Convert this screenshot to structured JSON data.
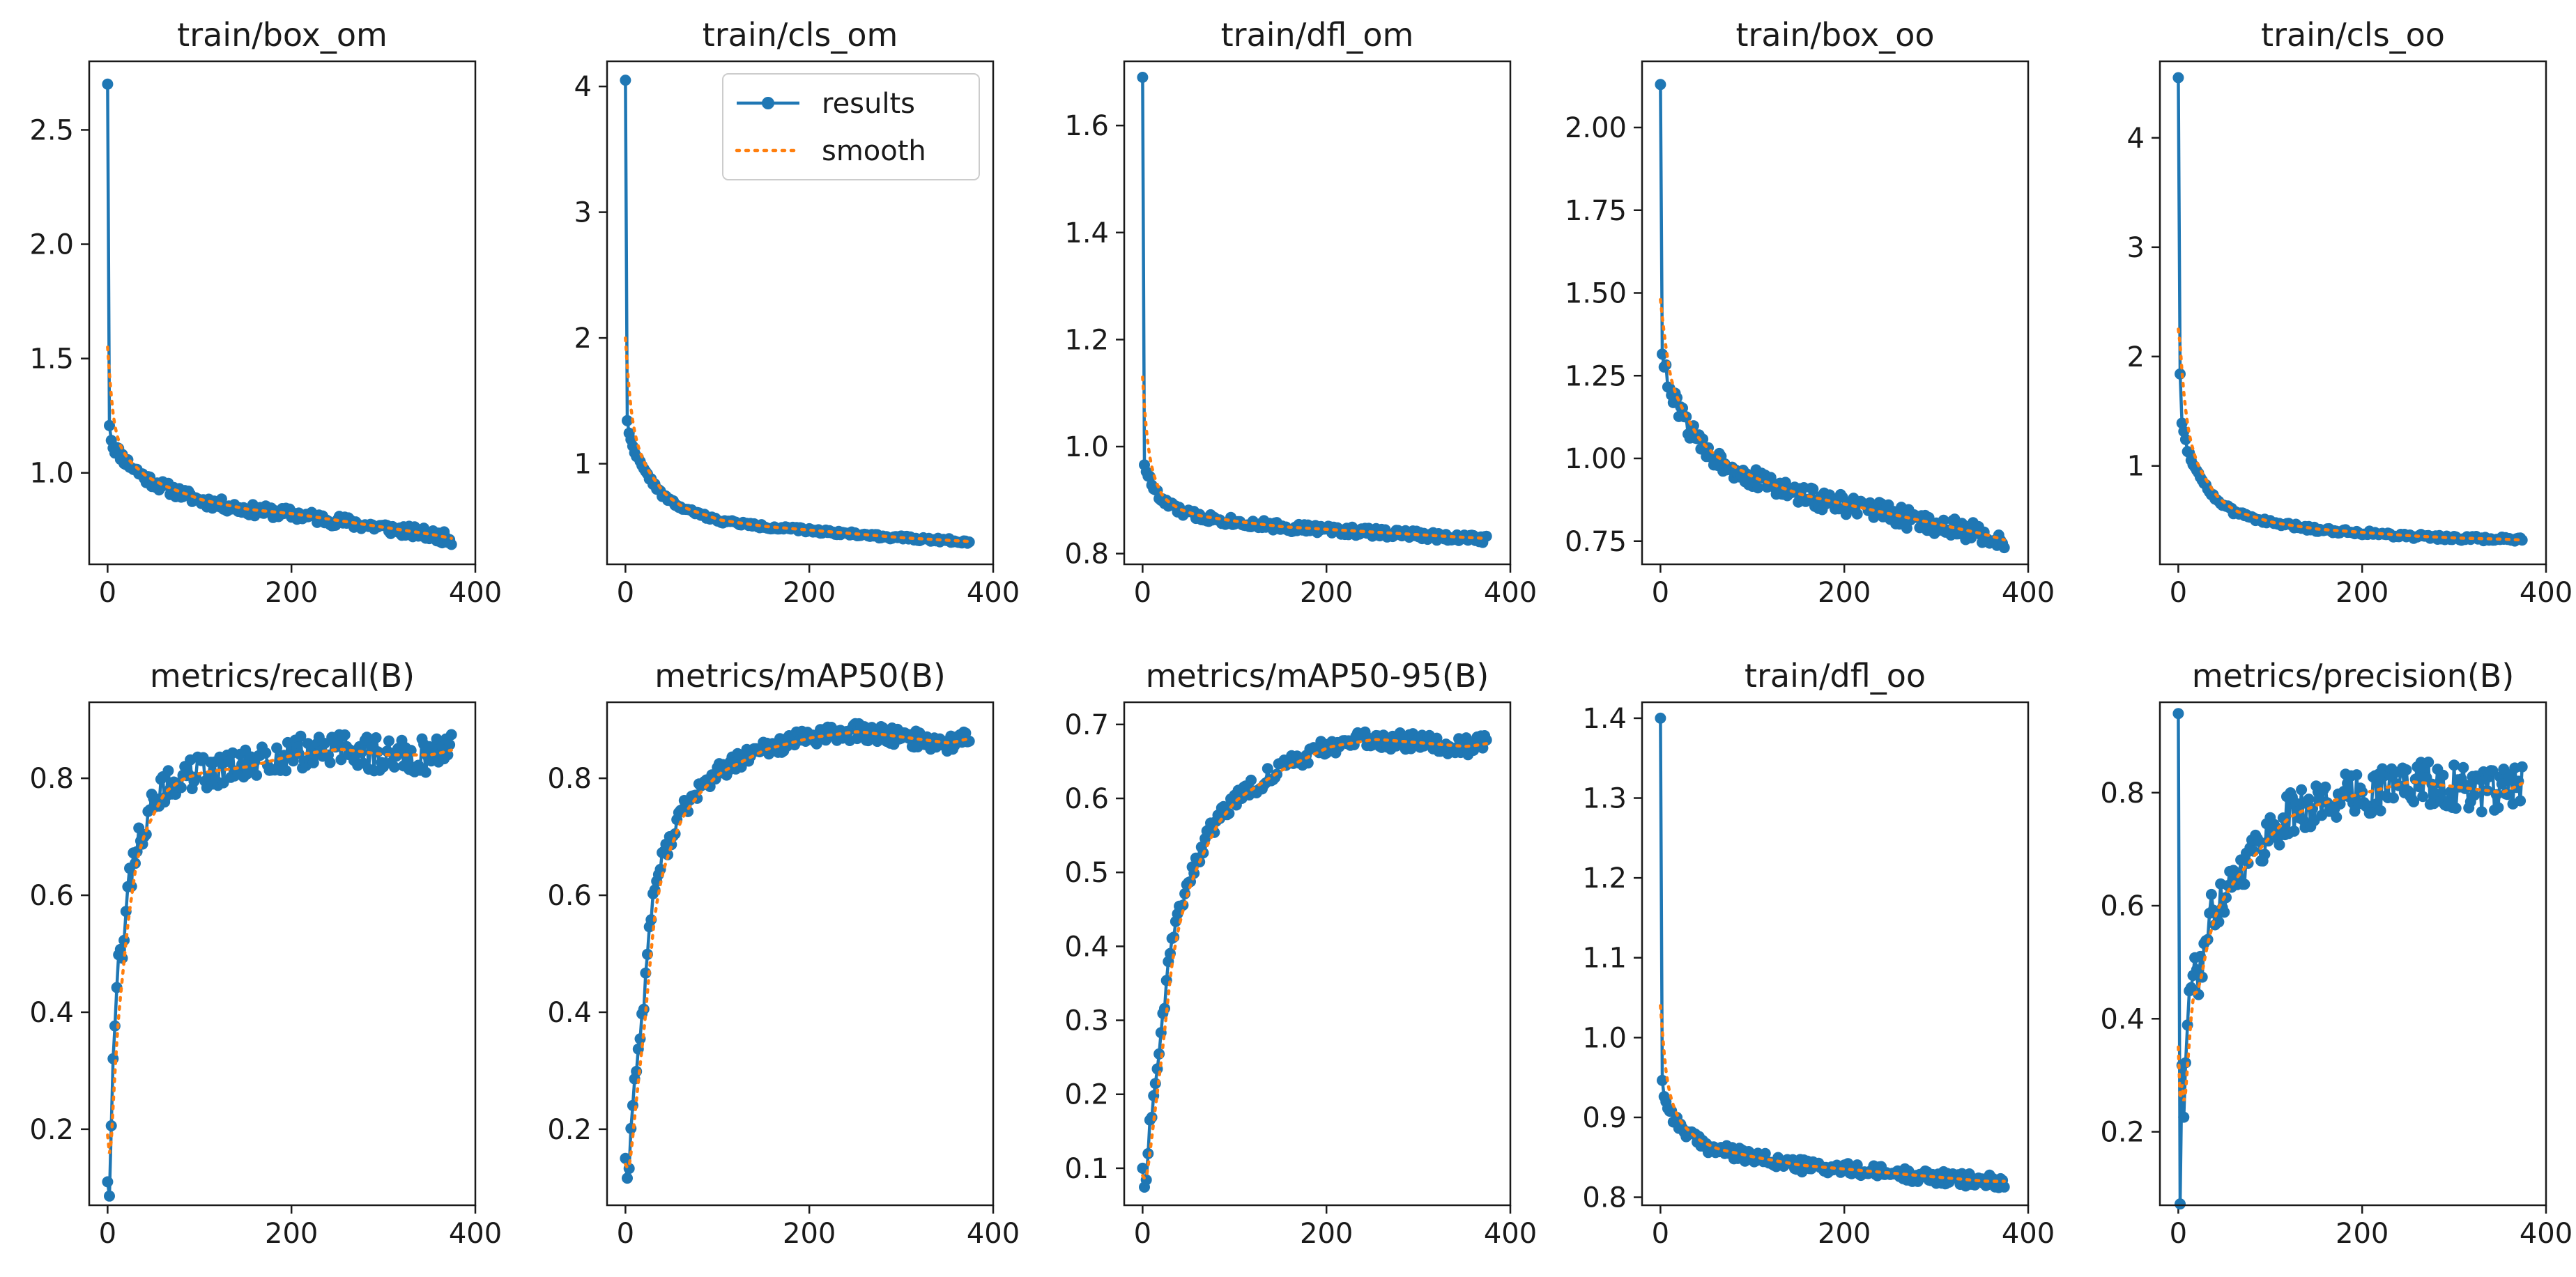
{
  "legend": {
    "results_label": "results",
    "smooth_label": "smooth"
  },
  "colors": {
    "results": "#1f77b4",
    "smooth": "#ff7f0e",
    "axis": "#1a1a1a"
  },
  "chart_data": [
    {
      "type": "line",
      "title": "train/box_om",
      "xlim": [
        -20,
        400
      ],
      "ylim": [
        0.6,
        2.8
      ],
      "xticks": [
        0,
        200,
        400
      ],
      "xtick_labels": [
        "0",
        "200",
        "400"
      ],
      "yticks": [
        1.0,
        1.5,
        2.0,
        2.5
      ],
      "ytick_labels": [
        "1.0",
        "1.5",
        "2.0",
        "2.5"
      ],
      "keypoints": [
        [
          0,
          2.7
        ],
        [
          2,
          1.22
        ],
        [
          5,
          1.12
        ],
        [
          10,
          1.1
        ],
        [
          20,
          1.05
        ],
        [
          40,
          0.98
        ],
        [
          60,
          0.94
        ],
        [
          100,
          0.88
        ],
        [
          150,
          0.84
        ],
        [
          200,
          0.82
        ],
        [
          250,
          0.79
        ],
        [
          300,
          0.76
        ],
        [
          350,
          0.73
        ],
        [
          375,
          0.71
        ]
      ],
      "smooth_start": 1.55,
      "noise": 0.025,
      "seed": 11
    },
    {
      "type": "line",
      "title": "train/cls_om",
      "xlim": [
        -20,
        400
      ],
      "ylim": [
        0.2,
        4.2
      ],
      "xticks": [
        0,
        200,
        400
      ],
      "xtick_labels": [
        "0",
        "200",
        "400"
      ],
      "yticks": [
        1,
        2,
        3,
        4
      ],
      "ytick_labels": [
        "1",
        "2",
        "3",
        "4"
      ],
      "keypoints": [
        [
          0,
          4.05
        ],
        [
          2,
          1.35
        ],
        [
          5,
          1.2
        ],
        [
          10,
          1.1
        ],
        [
          20,
          0.95
        ],
        [
          40,
          0.75
        ],
        [
          60,
          0.65
        ],
        [
          100,
          0.55
        ],
        [
          150,
          0.5
        ],
        [
          200,
          0.47
        ],
        [
          250,
          0.44
        ],
        [
          300,
          0.41
        ],
        [
          350,
          0.39
        ],
        [
          375,
          0.38
        ]
      ],
      "smooth_start": 2.0,
      "noise": 0.015,
      "seed": 22
    },
    {
      "type": "line",
      "title": "train/dfl_om",
      "xlim": [
        -20,
        400
      ],
      "ylim": [
        0.78,
        1.72
      ],
      "xticks": [
        0,
        200,
        400
      ],
      "xtick_labels": [
        "0",
        "200",
        "400"
      ],
      "yticks": [
        0.8,
        1.0,
        1.2,
        1.4,
        1.6
      ],
      "ytick_labels": [
        "0.8",
        "1.0",
        "1.2",
        "1.4",
        "1.6"
      ],
      "keypoints": [
        [
          0,
          1.69
        ],
        [
          2,
          0.97
        ],
        [
          5,
          0.95
        ],
        [
          10,
          0.93
        ],
        [
          20,
          0.9
        ],
        [
          40,
          0.88
        ],
        [
          60,
          0.87
        ],
        [
          100,
          0.86
        ],
        [
          150,
          0.85
        ],
        [
          200,
          0.845
        ],
        [
          250,
          0.84
        ],
        [
          300,
          0.835
        ],
        [
          350,
          0.83
        ],
        [
          375,
          0.828
        ]
      ],
      "smooth_start": 1.13,
      "noise": 0.008,
      "seed": 33
    },
    {
      "type": "line",
      "title": "train/box_oo",
      "xlim": [
        -20,
        400
      ],
      "ylim": [
        0.68,
        2.2
      ],
      "xticks": [
        0,
        200,
        400
      ],
      "xtick_labels": [
        "0",
        "200",
        "400"
      ],
      "yticks": [
        0.75,
        1.0,
        1.25,
        1.5,
        1.75,
        2.0
      ],
      "ytick_labels": [
        "0.75",
        "1.00",
        "1.25",
        "1.50",
        "1.75",
        "2.00"
      ],
      "keypoints": [
        [
          0,
          2.13
        ],
        [
          2,
          1.33
        ],
        [
          5,
          1.27
        ],
        [
          10,
          1.2
        ],
        [
          20,
          1.15
        ],
        [
          40,
          1.05
        ],
        [
          60,
          1.0
        ],
        [
          100,
          0.94
        ],
        [
          150,
          0.89
        ],
        [
          200,
          0.86
        ],
        [
          250,
          0.83
        ],
        [
          300,
          0.8
        ],
        [
          350,
          0.77
        ],
        [
          375,
          0.75
        ]
      ],
      "smooth_start": 1.48,
      "noise": 0.03,
      "seed": 44
    },
    {
      "type": "line",
      "title": "train/cls_oo",
      "xlim": [
        -20,
        400
      ],
      "ylim": [
        0.1,
        4.7
      ],
      "xticks": [
        0,
        200,
        400
      ],
      "xtick_labels": [
        "0",
        "200",
        "400"
      ],
      "yticks": [
        1,
        2,
        3,
        4
      ],
      "ytick_labels": [
        "1",
        "2",
        "3",
        "4"
      ],
      "keypoints": [
        [
          0,
          4.55
        ],
        [
          2,
          1.85
        ],
        [
          4,
          1.4
        ],
        [
          10,
          1.15
        ],
        [
          20,
          0.95
        ],
        [
          40,
          0.7
        ],
        [
          60,
          0.58
        ],
        [
          100,
          0.48
        ],
        [
          150,
          0.42
        ],
        [
          200,
          0.39
        ],
        [
          250,
          0.36
        ],
        [
          300,
          0.34
        ],
        [
          350,
          0.33
        ],
        [
          375,
          0.32
        ]
      ],
      "smooth_start": 2.25,
      "noise": 0.02,
      "seed": 55
    },
    {
      "type": "line",
      "title": "metrics/recall(B)",
      "xlim": [
        -20,
        400
      ],
      "ylim": [
        0.07,
        0.93
      ],
      "xticks": [
        0,
        200,
        400
      ],
      "xtick_labels": [
        "0",
        "200",
        "400"
      ],
      "yticks": [
        0.2,
        0.4,
        0.6,
        0.8
      ],
      "ytick_labels": [
        "0.2",
        "0.4",
        "0.6",
        "0.8"
      ],
      "keypoints": [
        [
          0,
          0.11
        ],
        [
          2,
          0.1
        ],
        [
          4,
          0.22
        ],
        [
          6,
          0.35
        ],
        [
          10,
          0.45
        ],
        [
          15,
          0.5
        ],
        [
          20,
          0.58
        ],
        [
          30,
          0.68
        ],
        [
          40,
          0.72
        ],
        [
          60,
          0.78
        ],
        [
          80,
          0.8
        ],
        [
          100,
          0.81
        ],
        [
          150,
          0.82
        ],
        [
          200,
          0.84
        ],
        [
          250,
          0.85
        ],
        [
          300,
          0.84
        ],
        [
          350,
          0.84
        ],
        [
          375,
          0.85
        ]
      ],
      "smooth_start": 0.19,
      "noise": 0.03,
      "seed": 66
    },
    {
      "type": "line",
      "title": "metrics/mAP50(B)",
      "xlim": [
        -20,
        400
      ],
      "ylim": [
        0.07,
        0.93
      ],
      "xticks": [
        0,
        200,
        400
      ],
      "xtick_labels": [
        "0",
        "200",
        "400"
      ],
      "yticks": [
        0.2,
        0.4,
        0.6,
        0.8
      ],
      "ytick_labels": [
        "0.2",
        "0.4",
        "0.6",
        "0.8"
      ],
      "keypoints": [
        [
          0,
          0.15
        ],
        [
          3,
          0.11
        ],
        [
          6,
          0.2
        ],
        [
          10,
          0.28
        ],
        [
          15,
          0.35
        ],
        [
          20,
          0.42
        ],
        [
          25,
          0.52
        ],
        [
          30,
          0.6
        ],
        [
          40,
          0.66
        ],
        [
          50,
          0.7
        ],
        [
          60,
          0.74
        ],
        [
          80,
          0.78
        ],
        [
          100,
          0.81
        ],
        [
          150,
          0.85
        ],
        [
          200,
          0.87
        ],
        [
          250,
          0.88
        ],
        [
          300,
          0.87
        ],
        [
          350,
          0.86
        ],
        [
          375,
          0.87
        ]
      ],
      "smooth_start": 0.14,
      "noise": 0.015,
      "seed": 77
    },
    {
      "type": "line",
      "title": "metrics/mAP50-95(B)",
      "xlim": [
        -20,
        400
      ],
      "ylim": [
        0.05,
        0.73
      ],
      "xticks": [
        0,
        200,
        400
      ],
      "xtick_labels": [
        "0",
        "200",
        "400"
      ],
      "yticks": [
        0.1,
        0.2,
        0.3,
        0.4,
        0.5,
        0.6,
        0.7
      ],
      "ytick_labels": [
        "0.1",
        "0.2",
        "0.3",
        "0.4",
        "0.5",
        "0.6",
        "0.7"
      ],
      "keypoints": [
        [
          0,
          0.1
        ],
        [
          3,
          0.07
        ],
        [
          6,
          0.13
        ],
        [
          10,
          0.18
        ],
        [
          15,
          0.23
        ],
        [
          20,
          0.28
        ],
        [
          25,
          0.34
        ],
        [
          30,
          0.4
        ],
        [
          40,
          0.45
        ],
        [
          50,
          0.49
        ],
        [
          60,
          0.52
        ],
        [
          80,
          0.57
        ],
        [
          100,
          0.6
        ],
        [
          150,
          0.64
        ],
        [
          200,
          0.67
        ],
        [
          250,
          0.68
        ],
        [
          300,
          0.675
        ],
        [
          350,
          0.67
        ],
        [
          375,
          0.675
        ]
      ],
      "smooth_start": 0.09,
      "noise": 0.012,
      "seed": 88
    },
    {
      "type": "line",
      "title": "train/dfl_oo",
      "xlim": [
        -20,
        400
      ],
      "ylim": [
        0.79,
        1.42
      ],
      "xticks": [
        0,
        200,
        400
      ],
      "xtick_labels": [
        "0",
        "200",
        "400"
      ],
      "yticks": [
        0.8,
        0.9,
        1.0,
        1.1,
        1.2,
        1.3,
        1.4
      ],
      "ytick_labels": [
        "0.8",
        "0.9",
        "1.0",
        "1.1",
        "1.2",
        "1.3",
        "1.4"
      ],
      "keypoints": [
        [
          0,
          1.4
        ],
        [
          2,
          0.95
        ],
        [
          5,
          0.92
        ],
        [
          10,
          0.91
        ],
        [
          20,
          0.89
        ],
        [
          40,
          0.87
        ],
        [
          60,
          0.86
        ],
        [
          100,
          0.85
        ],
        [
          150,
          0.84
        ],
        [
          200,
          0.835
        ],
        [
          250,
          0.83
        ],
        [
          300,
          0.825
        ],
        [
          350,
          0.82
        ],
        [
          375,
          0.82
        ]
      ],
      "smooth_start": 1.04,
      "noise": 0.008,
      "seed": 99
    },
    {
      "type": "line",
      "title": "metrics/precision(B)",
      "xlim": [
        -20,
        400
      ],
      "ylim": [
        0.07,
        0.96
      ],
      "xticks": [
        0,
        200,
        400
      ],
      "xtick_labels": [
        "0",
        "200",
        "400"
      ],
      "yticks": [
        0.2,
        0.4,
        0.6,
        0.8
      ],
      "ytick_labels": [
        "0.2",
        "0.4",
        "0.6",
        "0.8"
      ],
      "keypoints": [
        [
          0,
          0.94
        ],
        [
          2,
          0.09
        ],
        [
          4,
          0.33
        ],
        [
          6,
          0.2
        ],
        [
          10,
          0.4
        ],
        [
          15,
          0.5
        ],
        [
          20,
          0.45
        ],
        [
          30,
          0.55
        ],
        [
          40,
          0.6
        ],
        [
          60,
          0.65
        ],
        [
          80,
          0.69
        ],
        [
          100,
          0.73
        ],
        [
          120,
          0.76
        ],
        [
          150,
          0.78
        ],
        [
          200,
          0.8
        ],
        [
          250,
          0.82
        ],
        [
          300,
          0.81
        ],
        [
          350,
          0.8
        ],
        [
          375,
          0.82
        ]
      ],
      "smooth_start": 0.35,
      "noise": 0.04,
      "seed": 111
    }
  ]
}
